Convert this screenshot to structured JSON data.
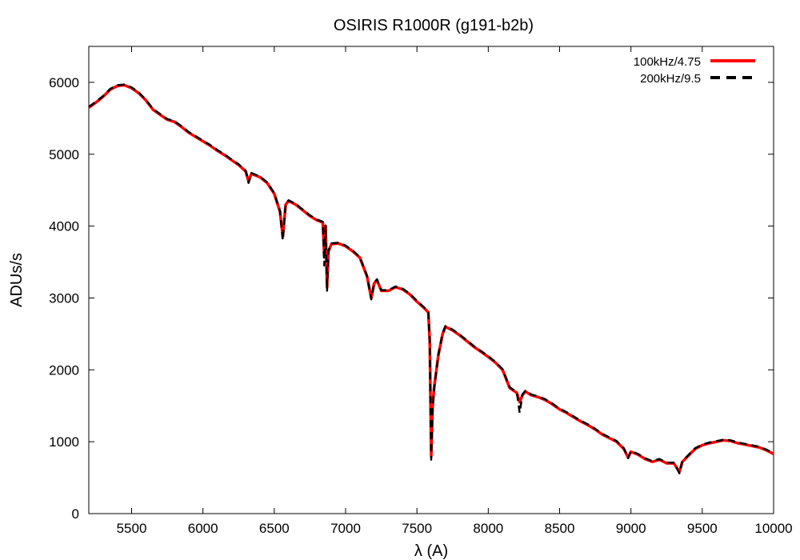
{
  "chart_data": {
    "type": "line",
    "title": "OSIRIS R1000R (g191-b2b)",
    "xlabel": "λ (A)",
    "ylabel": "ADUs/s",
    "xlim": [
      5200,
      10000
    ],
    "ylim": [
      0,
      6500
    ],
    "xticks": [
      5500,
      6000,
      6500,
      7000,
      7500,
      8000,
      8500,
      9000,
      9500,
      10000
    ],
    "yticks": [
      0,
      1000,
      2000,
      3000,
      4000,
      5000,
      6000
    ],
    "grid": false,
    "legend_position": "top-right",
    "series": [
      {
        "name": "100kHz/4.75",
        "color": "#ff0000",
        "style": "solid",
        "x": [
          5200,
          5250,
          5300,
          5350,
          5400,
          5450,
          5500,
          5550,
          5600,
          5650,
          5700,
          5750,
          5800,
          5850,
          5900,
          5950,
          6000,
          6050,
          6100,
          6150,
          6200,
          6250,
          6300,
          6320,
          6340,
          6350,
          6400,
          6450,
          6500,
          6540,
          6560,
          6580,
          6600,
          6650,
          6700,
          6750,
          6800,
          6840,
          6850,
          6860,
          6870,
          6880,
          6900,
          6950,
          7000,
          7050,
          7100,
          7150,
          7180,
          7200,
          7220,
          7250,
          7300,
          7350,
          7400,
          7450,
          7500,
          7550,
          7580,
          7590,
          7600,
          7610,
          7620,
          7650,
          7680,
          7700,
          7750,
          7800,
          7850,
          7900,
          7950,
          8000,
          8050,
          8100,
          8150,
          8200,
          8220,
          8240,
          8260,
          8300,
          8350,
          8400,
          8450,
          8500,
          8550,
          8600,
          8650,
          8700,
          8750,
          8800,
          8850,
          8900,
          8950,
          8980,
          9000,
          9050,
          9100,
          9150,
          9200,
          9250,
          9300,
          9340,
          9360,
          9400,
          9450,
          9500,
          9550,
          9600,
          9650,
          9700,
          9750,
          9800,
          9850,
          9900,
          9950,
          10000
        ],
        "y": [
          5650,
          5720,
          5800,
          5900,
          5950,
          5960,
          5920,
          5850,
          5750,
          5620,
          5550,
          5480,
          5450,
          5380,
          5300,
          5240,
          5180,
          5120,
          5050,
          4990,
          4920,
          4850,
          4760,
          4620,
          4730,
          4720,
          4680,
          4600,
          4450,
          4200,
          3850,
          4300,
          4350,
          4300,
          4220,
          4140,
          4080,
          4050,
          3600,
          4000,
          3150,
          3650,
          3750,
          3760,
          3720,
          3650,
          3560,
          3300,
          3000,
          3200,
          3250,
          3100,
          3100,
          3150,
          3120,
          3050,
          2950,
          2860,
          2800,
          2400,
          800,
          1500,
          1750,
          2200,
          2500,
          2600,
          2550,
          2480,
          2400,
          2320,
          2250,
          2180,
          2100,
          2000,
          1750,
          1680,
          1550,
          1650,
          1700,
          1650,
          1620,
          1580,
          1520,
          1450,
          1400,
          1340,
          1280,
          1230,
          1170,
          1100,
          1050,
          1000,
          900,
          780,
          860,
          820,
          760,
          720,
          750,
          700,
          700,
          580,
          720,
          800,
          900,
          950,
          980,
          1000,
          1020,
          1010,
          980,
          960,
          940,
          920,
          880,
          830
        ]
      },
      {
        "name": "200kHz/9.5",
        "color": "#000000",
        "style": "dashed",
        "x": [
          5200,
          5250,
          5300,
          5350,
          5400,
          5450,
          5500,
          5550,
          5600,
          5650,
          5700,
          5750,
          5800,
          5850,
          5900,
          5950,
          6000,
          6050,
          6100,
          6150,
          6200,
          6250,
          6300,
          6320,
          6340,
          6350,
          6400,
          6450,
          6500,
          6540,
          6560,
          6580,
          6600,
          6650,
          6700,
          6750,
          6800,
          6840,
          6850,
          6860,
          6870,
          6880,
          6900,
          6950,
          7000,
          7050,
          7100,
          7150,
          7180,
          7200,
          7220,
          7250,
          7300,
          7350,
          7400,
          7450,
          7500,
          7550,
          7580,
          7590,
          7600,
          7610,
          7620,
          7650,
          7680,
          7700,
          7750,
          7800,
          7850,
          7900,
          7950,
          8000,
          8050,
          8100,
          8150,
          8200,
          8220,
          8240,
          8260,
          8300,
          8350,
          8400,
          8450,
          8500,
          8550,
          8600,
          8650,
          8700,
          8750,
          8800,
          8850,
          8900,
          8950,
          8980,
          9000,
          9050,
          9100,
          9150,
          9200,
          9250,
          9300,
          9340,
          9360,
          9400,
          9450,
          9500,
          9550,
          9600,
          9650,
          9700,
          9750,
          9800,
          9850,
          9900,
          9950,
          10000
        ],
        "y": [
          5660,
          5730,
          5810,
          5910,
          5960,
          5970,
          5930,
          5860,
          5760,
          5630,
          5560,
          5490,
          5460,
          5390,
          5310,
          5250,
          5190,
          5130,
          5060,
          5000,
          4930,
          4860,
          4770,
          4600,
          4740,
          4730,
          4690,
          4610,
          4460,
          4210,
          3800,
          4310,
          4360,
          4310,
          4230,
          4150,
          4090,
          4060,
          3450,
          4010,
          3100,
          3660,
          3760,
          3770,
          3730,
          3660,
          3570,
          3310,
          2980,
          3210,
          3260,
          3110,
          3110,
          3160,
          3130,
          3060,
          2960,
          2870,
          2810,
          2380,
          750,
          1450,
          1720,
          2210,
          2510,
          2610,
          2560,
          2490,
          2410,
          2330,
          2260,
          2190,
          2110,
          2010,
          1760,
          1690,
          1400,
          1660,
          1710,
          1660,
          1630,
          1590,
          1530,
          1460,
          1410,
          1350,
          1290,
          1240,
          1180,
          1110,
          1060,
          1010,
          910,
          770,
          870,
          830,
          770,
          730,
          760,
          710,
          710,
          560,
          730,
          810,
          910,
          960,
          990,
          1010,
          1030,
          1020,
          990,
          970,
          950,
          930,
          890,
          840
        ]
      }
    ]
  }
}
